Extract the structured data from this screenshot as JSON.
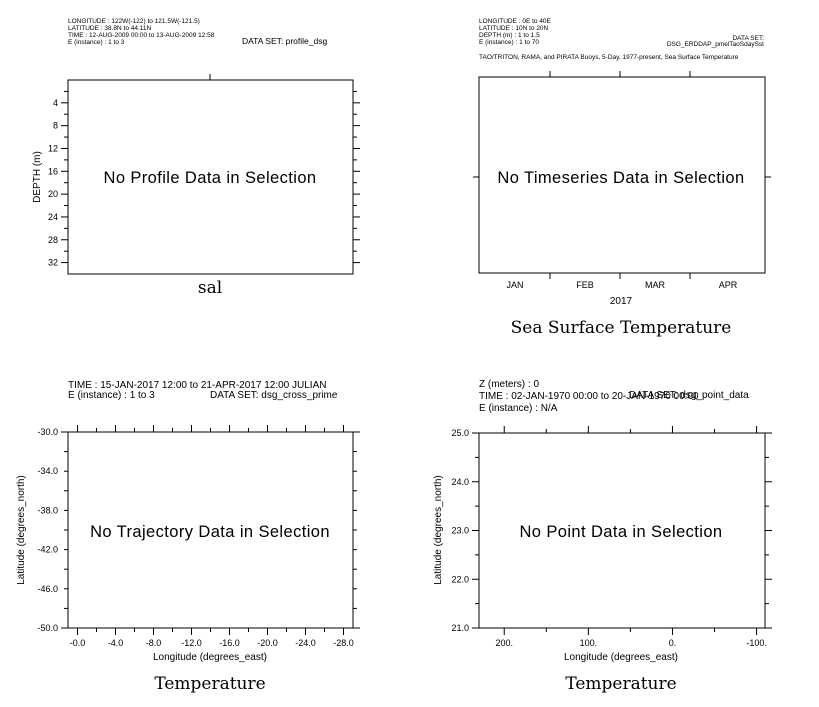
{
  "chart_data": [
    {
      "type": "line",
      "panel": "profile",
      "header_lines": [
        "LONGITUDE : 122W(-122) to 121.5W(-121.5)",
        "LATITUDE : 38.8N to 44.11N",
        "TIME : 12-AUG-2009 00:00 to 13-AUG-2009 12:58",
        "E (instance) : 1 to 3"
      ],
      "dataset": "DATA SET: profile_dsg",
      "message": "No Profile Data in Selection",
      "ylabel": "DEPTH (m)",
      "xlabel": "",
      "ylim": [
        34,
        0
      ],
      "yticks": [
        "4",
        "8",
        "12",
        "16",
        "20",
        "24",
        "28",
        "32"
      ],
      "title": "sal"
    },
    {
      "type": "line",
      "panel": "timeseries",
      "header_lines": [
        "LONGITUDE : 0E to 40E",
        "LATITUDE : 10N to 20N",
        "DEPTH (m) : 1 to 1.5",
        "E (instance) : 1 to 70"
      ],
      "dataset_label": "DATA SET:",
      "dataset_name": "DSG_ERDDAP_pmelTaoSdaySst",
      "subtitle": "TAO/TRITON, RAMA, and PIRATA Buoys, 5-Day, 1977-present, Sea Surface Temperature",
      "message": "No Timeseries Data in Selection",
      "xticks": [
        "JAN",
        "FEB",
        "MAR",
        "APR"
      ],
      "xlabel": "2017",
      "title": "Sea Surface Temperature"
    },
    {
      "type": "line",
      "panel": "trajectory",
      "header_lines": [
        "TIME : 15-JAN-2017 12:00 to 21-APR-2017 12:00 JULIAN",
        "E (instance) : 1 to 3"
      ],
      "dataset": "DATA SET: dsg_cross_prime",
      "message": "No Trajectory Data in Selection",
      "ylabel": "Latitude (degrees_north)",
      "xlabel": "Longitude (degrees_east)",
      "ylim": [
        -50,
        -30
      ],
      "xlim": [
        1.0,
        -29.0
      ],
      "yticks": [
        "-30.0",
        "-34.0",
        "-38.0",
        "-42.0",
        "-46.0",
        "-50.0"
      ],
      "xticks": [
        "-0.0",
        "-4.0",
        "-8.0",
        "-12.0",
        "-16.0",
        "-20.0",
        "-24.0",
        "-28.0"
      ],
      "title": "Temperature"
    },
    {
      "type": "scatter",
      "panel": "point",
      "header_lines": [
        "Z (meters) : 0",
        "TIME : 02-JAN-1970 00:00 to 20-JAN-1970 00:00",
        "E (instance) :  N/A"
      ],
      "dataset": "DATA SET: dsg_point_data",
      "message": "No Point Data in Selection",
      "ylabel": "Latitude (degrees_north)",
      "xlabel": "Longitude (degrees_east)",
      "ylim": [
        21.0,
        25.0
      ],
      "xlim": [
        230,
        -110
      ],
      "yticks": [
        "25.0",
        "24.0",
        "23.0",
        "22.0",
        "21.0"
      ],
      "xticks": [
        "200.",
        "100.",
        "0.",
        "-100."
      ],
      "title": "Temperature"
    }
  ]
}
